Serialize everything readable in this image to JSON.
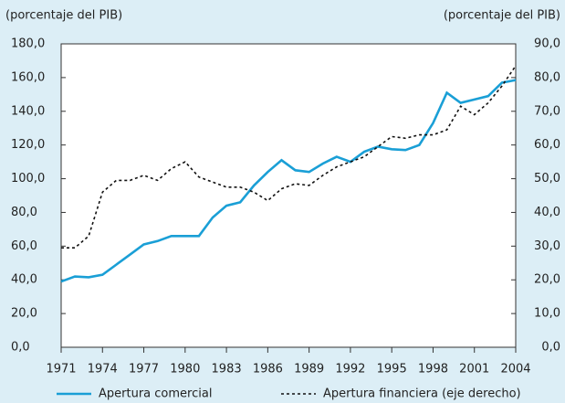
{
  "chart_data": {
    "type": "line",
    "y_label": "(porcentaje del PIB)",
    "y2_label": "(porcentaje del PIB)",
    "x": [
      1971,
      1972,
      1973,
      1974,
      1975,
      1976,
      1977,
      1978,
      1979,
      1980,
      1981,
      1982,
      1983,
      1984,
      1985,
      1986,
      1987,
      1988,
      1989,
      1990,
      1991,
      1992,
      1993,
      1994,
      1995,
      1996,
      1997,
      1998,
      1999,
      2000,
      2001,
      2002,
      2003,
      2004
    ],
    "series": [
      {
        "name": "Apertura comercial",
        "color": "#1a9fd6",
        "values": [
          39,
          42,
          41.5,
          43,
          49,
          55,
          61,
          63,
          66,
          66,
          66,
          77,
          84,
          86,
          96,
          104,
          111,
          105,
          104,
          109,
          113,
          110,
          116,
          119,
          117.5,
          117,
          120,
          133,
          151,
          145,
          147,
          149,
          157,
          158.5
        ]
      },
      {
        "name": "Apertura financiera (eje derecho)",
        "color": "#111111",
        "axis": "y2",
        "dashed": true,
        "values": [
          29.5,
          29.5,
          33,
          46,
          49.5,
          49.5,
          51,
          49.5,
          53,
          55,
          50.5,
          49,
          47.5,
          47.5,
          46,
          43.5,
          47,
          48.5,
          48,
          51,
          53.5,
          55,
          56.5,
          59.5,
          62.5,
          62,
          63,
          63,
          64.5,
          71.5,
          69,
          72.5,
          77.5,
          83.5
        ]
      }
    ],
    "xlim": [
      1971,
      2004
    ],
    "xticks": [
      1971,
      1974,
      1977,
      1980,
      1983,
      1986,
      1989,
      1992,
      1995,
      1998,
      2001,
      2004
    ],
    "ylim": [
      0,
      180
    ],
    "yticks": [
      {
        "value": 0,
        "label": "0,0"
      },
      {
        "value": 20,
        "label": "20,0"
      },
      {
        "value": 40,
        "label": "40,0"
      },
      {
        "value": 60,
        "label": "60,0"
      },
      {
        "value": 80,
        "label": "80,0"
      },
      {
        "value": 100,
        "label": "100,0"
      },
      {
        "value": 120,
        "label": "120,0"
      },
      {
        "value": 140,
        "label": "140,0"
      },
      {
        "value": 160,
        "label": "160,0"
      },
      {
        "value": 180,
        "label": "180,0"
      }
    ],
    "y2lim": [
      0,
      90
    ],
    "y2ticks": [
      {
        "value": 0,
        "label": "0,0"
      },
      {
        "value": 10,
        "label": "10,0"
      },
      {
        "value": 20,
        "label": "20,0"
      },
      {
        "value": 30,
        "label": "30,0"
      },
      {
        "value": 40,
        "label": "40,0"
      },
      {
        "value": 50,
        "label": "50,0"
      },
      {
        "value": 60,
        "label": "60,0"
      },
      {
        "value": 70,
        "label": "70,0"
      },
      {
        "value": 80,
        "label": "80,0"
      },
      {
        "value": 90,
        "label": "90,0"
      }
    ]
  }
}
